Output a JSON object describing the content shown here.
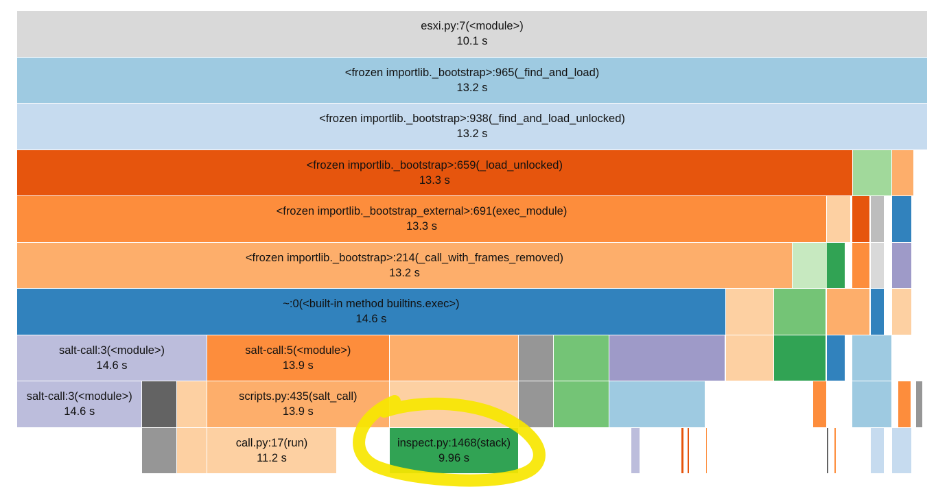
{
  "colors": {
    "highlight_ring": "#f7e600",
    "tab_blue": "#3182bd",
    "tab_blue_light": "#9ecae1",
    "tab_blue_pale": "#c6dbef",
    "tab_orange_dark": "#e6550d",
    "tab_orange": "#fd8d3c",
    "tab_orange_light": "#fdae6b",
    "tab_orange_pale": "#fdd0a2",
    "tab_green_dark": "#31a354",
    "tab_green": "#74c476",
    "tab_green_light": "#a1d99b",
    "tab_green_pale": "#c7e9c0",
    "tab_purple": "#9e9ac8",
    "tab_purple_light": "#bcbddc",
    "tab_purple_dark": "#756bb1",
    "tab_gray_dark": "#636363",
    "tab_gray": "#969696",
    "tab_gray_light": "#bdbdbd",
    "tab_gray_pale": "#d9d9d9"
  },
  "frames": [
    {
      "name": "esxi.py:7(<module>)",
      "time": "10.1 s",
      "color": "#d9d9d9",
      "depth": 0,
      "start": 0,
      "span": 1
    },
    {
      "name": "<frozen importlib._bootstrap>:965(_find_and_load)",
      "time": "13.2 s",
      "color": "#9ecae1",
      "depth": 1,
      "start": 0,
      "span": 1
    },
    {
      "name": "<frozen importlib._bootstrap>:938(_find_and_load_unlocked)",
      "time": "13.2 s",
      "color": "#c6dbef",
      "depth": 2,
      "start": 0,
      "span": 1
    },
    {
      "name": "<frozen importlib._bootstrap>:659(_load_unlocked)",
      "time": "13.3 s",
      "color": "#e6550d",
      "depth": 3,
      "start": 0,
      "span": 0.9176
    },
    {
      "name": "",
      "time": "",
      "color": "#a1d99b",
      "depth": 3,
      "start": 0.9176,
      "span": 0.0431
    },
    {
      "name": "",
      "time": "",
      "color": "#fdae6b",
      "depth": 3,
      "start": 0.9607,
      "span": 0.0246
    },
    {
      "name": "<frozen importlib._bootstrap_external>:691(exec_module)",
      "time": "13.3 s",
      "color": "#fd8d3c",
      "depth": 4,
      "start": 0,
      "span": 0.8892
    },
    {
      "name": "",
      "time": "",
      "color": "#fdd0a2",
      "depth": 4,
      "start": 0.8892,
      "span": 0.0261
    },
    {
      "name": "",
      "time": "",
      "color": "#e6550d",
      "depth": 4,
      "start": 0.9169,
      "span": 0.0195
    },
    {
      "name": "",
      "time": "",
      "color": "#bdbdbd",
      "depth": 4,
      "start": 0.9371,
      "span": 0.0157
    },
    {
      "name": "",
      "time": "",
      "color": "#3182bd",
      "depth": 4,
      "start": 0.9607,
      "span": 0.0216
    },
    {
      "name": "<frozen importlib._bootstrap>:214(_call_with_frames_removed)",
      "time": "13.2 s",
      "color": "#fdae6b",
      "depth": 5,
      "start": 0,
      "span": 0.8515
    },
    {
      "name": "",
      "time": "",
      "color": "#c7e9c0",
      "depth": 5,
      "start": 0.8515,
      "span": 0.0386
    },
    {
      "name": "",
      "time": "",
      "color": "#31a354",
      "depth": 5,
      "start": 0.8892,
      "span": 0.0201
    },
    {
      "name": "",
      "time": "",
      "color": "#fd8d3c",
      "depth": 5,
      "start": 0.9169,
      "span": 0.0195
    },
    {
      "name": "",
      "time": "",
      "color": "#d9d9d9",
      "depth": 5,
      "start": 0.9371,
      "span": 0.0157
    },
    {
      "name": "",
      "time": "",
      "color": "#9e9ac8",
      "depth": 5,
      "start": 0.9607,
      "span": 0.0216
    },
    {
      "name": "~:0(<built-in method builtins.exec>)",
      "time": "14.6 s",
      "color": "#3182bd",
      "depth": 6,
      "start": 0,
      "span": 0.7783
    },
    {
      "name": "",
      "time": "",
      "color": "#fdd0a2",
      "depth": 6,
      "start": 0.7783,
      "span": 0.0532
    },
    {
      "name": "",
      "time": "",
      "color": "#74c476",
      "depth": 6,
      "start": 0.8315,
      "span": 0.0567
    },
    {
      "name": "",
      "time": "",
      "color": "#fdae6b",
      "depth": 6,
      "start": 0.8892,
      "span": 0.0478
    },
    {
      "name": "",
      "time": "",
      "color": "#3182bd",
      "depth": 6,
      "start": 0.9371,
      "span": 0.0157
    },
    {
      "name": "",
      "time": "",
      "color": "#fdd0a2",
      "depth": 6,
      "start": 0.9607,
      "span": 0.0216
    },
    {
      "name": "salt-call:3(<module>)",
      "time": "14.6 s",
      "color": "#bcbddc",
      "depth": 7,
      "start": 0,
      "span": 0.2088
    },
    {
      "name": "salt-call:5(<module>)",
      "time": "13.9 s",
      "color": "#fd8d3c",
      "depth": 7,
      "start": 0.2088,
      "span": 0.2001
    },
    {
      "name": "",
      "time": "",
      "color": "#fdae6b",
      "depth": 7,
      "start": 0.4089,
      "span": 0.1423
    },
    {
      "name": "",
      "time": "",
      "color": "#969696",
      "depth": 7,
      "start": 0.5512,
      "span": 0.0378
    },
    {
      "name": "",
      "time": "",
      "color": "#74c476",
      "depth": 7,
      "start": 0.589,
      "span": 0.0615
    },
    {
      "name": "",
      "time": "",
      "color": "#9e9ac8",
      "depth": 7,
      "start": 0.6505,
      "span": 0.1273
    },
    {
      "name": "",
      "time": "",
      "color": "#fdd0a2",
      "depth": 7,
      "start": 0.7783,
      "span": 0.0532
    },
    {
      "name": "",
      "time": "",
      "color": "#31a354",
      "depth": 7,
      "start": 0.8315,
      "span": 0.0567
    },
    {
      "name": "",
      "time": "",
      "color": "#3182bd",
      "depth": 7,
      "start": 0.8892,
      "span": 0.0201
    },
    {
      "name": "",
      "time": "",
      "color": "#9ecae1",
      "depth": 7,
      "start": 0.9169,
      "span": 0.0441
    },
    {
      "name": "salt-call:3(<module>)",
      "time": "14.6 s",
      "color": "#bcbddc",
      "depth": 8,
      "start": 0,
      "span": 0.1375
    },
    {
      "name": "",
      "time": "",
      "color": "#636363",
      "depth": 8,
      "start": 0.1375,
      "span": 0.0378
    },
    {
      "name": "",
      "time": "",
      "color": "#fdd0a2",
      "depth": 8,
      "start": 0.1753,
      "span": 0.0335
    },
    {
      "name": "scripts.py:435(salt_call)",
      "time": "13.9 s",
      "color": "#fdae6b",
      "depth": 8,
      "start": 0.2088,
      "span": 0.2001
    },
    {
      "name": "",
      "time": "",
      "color": "#fdd0a2",
      "depth": 8,
      "start": 0.4089,
      "span": 0.1423
    },
    {
      "name": "",
      "time": "",
      "color": "#969696",
      "depth": 8,
      "start": 0.5512,
      "span": 0.0378
    },
    {
      "name": "",
      "time": "",
      "color": "#74c476",
      "depth": 8,
      "start": 0.589,
      "span": 0.0615
    },
    {
      "name": "",
      "time": "",
      "color": "#9ecae1",
      "depth": 8,
      "start": 0.6505,
      "span": 0.1056
    },
    {
      "name": "",
      "time": "",
      "color": "#fd8d3c",
      "depth": 8,
      "start": 0.8745,
      "span": 0.0148
    },
    {
      "name": "",
      "time": "",
      "color": "#9ecae1",
      "depth": 8,
      "start": 0.9169,
      "span": 0.0441
    },
    {
      "name": "",
      "time": "",
      "color": "#fd8d3c",
      "depth": 8,
      "start": 0.9675,
      "span": 0.0148
    },
    {
      "name": "",
      "time": "",
      "color": "#969696",
      "depth": 8,
      "start": 0.9875,
      "span": 0.0074
    },
    {
      "name": "",
      "time": "",
      "color": "#969696",
      "depth": 9,
      "start": 0.1375,
      "span": 0.0378
    },
    {
      "name": "",
      "time": "",
      "color": "#fdd0a2",
      "depth": 9,
      "start": 0.1753,
      "span": 0.0335
    },
    {
      "name": "call.py:17(run)",
      "time": "11.2 s",
      "color": "#fdd0a2",
      "depth": 9,
      "start": 0.2088,
      "span": 0.1423
    },
    {
      "name": "inspect.py:1468(stack)",
      "time": "9.96 s",
      "color": "#31a354",
      "depth": 9,
      "start": 0.4089,
      "span": 0.1423
    },
    {
      "name": "",
      "time": "",
      "color": "#bcbddc",
      "depth": 9,
      "start": 0.6745,
      "span": 0.0096
    },
    {
      "name": "",
      "time": "",
      "color": "#e6550d",
      "depth": 9,
      "start": 0.7298,
      "span": 0.0024
    },
    {
      "name": "",
      "time": "",
      "color": "#e6550d",
      "depth": 9,
      "start": 0.7364,
      "span": 0.0024
    },
    {
      "name": "",
      "time": "",
      "color": "#fd8d3c",
      "depth": 9,
      "start": 0.7566,
      "span": 0.0018
    },
    {
      "name": "",
      "time": "",
      "color": "#636363",
      "depth": 9,
      "start": 0.8892,
      "span": 0.0024
    },
    {
      "name": "",
      "time": "",
      "color": "#fd8d3c",
      "depth": 9,
      "start": 0.8974,
      "span": 0.0024
    },
    {
      "name": "",
      "time": "",
      "color": "#c6dbef",
      "depth": 9,
      "start": 0.9371,
      "span": 0.0157
    },
    {
      "name": "",
      "time": "",
      "color": "#c6dbef",
      "depth": 9,
      "start": 0.9607,
      "span": 0.0216
    }
  ]
}
